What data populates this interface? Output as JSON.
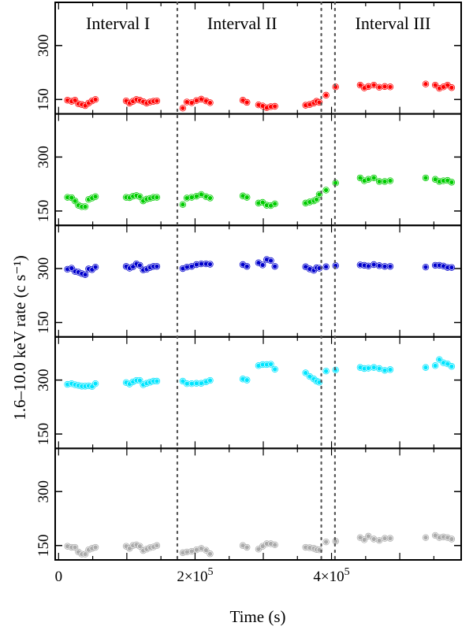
{
  "chart_data": {
    "type": "scatter",
    "xlabel": "Time (s)",
    "ylabel": "1.6–10.0 keV rate (c s⁻¹)",
    "xlim": [
      -5000,
      590000
    ],
    "ylim": [
      110,
      420
    ],
    "x_ticks": [
      {
        "value": 0,
        "base": "0",
        "exp": ""
      },
      {
        "value": 200000,
        "base": "2×10",
        "exp": "5"
      },
      {
        "value": 400000,
        "base": "4×10",
        "exp": "5"
      }
    ],
    "y_ticks": [
      {
        "value": 150,
        "label": "150"
      },
      {
        "value": 300,
        "label": "300"
      }
    ],
    "vertical_lines": [
      174000,
      385000,
      405000
    ],
    "intervals": [
      {
        "label": "Interval I",
        "x_center": 87000
      },
      {
        "label": "Interval II",
        "x_center": 269000
      },
      {
        "label": "Interval III",
        "x_center": 490000
      }
    ],
    "panels": [
      {
        "color": "#ff0000",
        "points": [
          [
            13000,
            148
          ],
          [
            19000,
            145
          ],
          [
            24000,
            148
          ],
          [
            29000,
            138
          ],
          [
            34000,
            136
          ],
          [
            39000,
            133
          ],
          [
            44000,
            140
          ],
          [
            49000,
            146
          ],
          [
            54000,
            150
          ],
          [
            99000,
            146
          ],
          [
            104000,
            140
          ],
          [
            109000,
            145
          ],
          [
            114000,
            150
          ],
          [
            119000,
            148
          ],
          [
            124000,
            144
          ],
          [
            129000,
            140
          ],
          [
            134000,
            143
          ],
          [
            139000,
            145
          ],
          [
            144000,
            146
          ],
          [
            182000,
            126
          ],
          [
            188000,
            143
          ],
          [
            195000,
            141
          ],
          [
            202000,
            147
          ],
          [
            209000,
            151
          ],
          [
            216000,
            146
          ],
          [
            222000,
            141
          ],
          [
            270000,
            148
          ],
          [
            276000,
            142
          ],
          [
            293000,
            135
          ],
          [
            299000,
            132
          ],
          [
            305000,
            127
          ],
          [
            311000,
            130
          ],
          [
            317000,
            131
          ],
          [
            362000,
            134
          ],
          [
            368000,
            136
          ],
          [
            374000,
            140
          ],
          [
            378000,
            145
          ],
          [
            382000,
            142
          ],
          [
            392000,
            162
          ],
          [
            406000,
            185
          ],
          [
            442000,
            190
          ],
          [
            448000,
            182
          ],
          [
            454000,
            186
          ],
          [
            462000,
            190
          ],
          [
            470000,
            184
          ],
          [
            478000,
            186
          ],
          [
            486000,
            185
          ],
          [
            538000,
            193
          ],
          [
            552000,
            190
          ],
          [
            558000,
            181
          ],
          [
            564000,
            185
          ],
          [
            570000,
            190
          ],
          [
            576000,
            183
          ]
        ]
      },
      {
        "color": "#00cc00",
        "points": [
          [
            13000,
            188
          ],
          [
            19000,
            187
          ],
          [
            24000,
            178
          ],
          [
            29000,
            166
          ],
          [
            34000,
            162
          ],
          [
            39000,
            162
          ],
          [
            44000,
            182
          ],
          [
            49000,
            186
          ],
          [
            54000,
            190
          ],
          [
            99000,
            188
          ],
          [
            104000,
            187
          ],
          [
            109000,
            191
          ],
          [
            114000,
            193
          ],
          [
            119000,
            190
          ],
          [
            124000,
            178
          ],
          [
            129000,
            183
          ],
          [
            134000,
            185
          ],
          [
            139000,
            188
          ],
          [
            144000,
            188
          ],
          [
            182000,
            168
          ],
          [
            188000,
            186
          ],
          [
            195000,
            188
          ],
          [
            202000,
            191
          ],
          [
            209000,
            196
          ],
          [
            216000,
            190
          ],
          [
            222000,
            186
          ],
          [
            270000,
            192
          ],
          [
            276000,
            188
          ],
          [
            293000,
            172
          ],
          [
            299000,
            174
          ],
          [
            305000,
            166
          ],
          [
            311000,
            165
          ],
          [
            317000,
            170
          ],
          [
            362000,
            172
          ],
          [
            368000,
            175
          ],
          [
            374000,
            178
          ],
          [
            378000,
            182
          ],
          [
            382000,
            196
          ],
          [
            392000,
            208
          ],
          [
            406000,
            228
          ],
          [
            442000,
            242
          ],
          [
            448000,
            234
          ],
          [
            454000,
            238
          ],
          [
            462000,
            242
          ],
          [
            470000,
            232
          ],
          [
            478000,
            232
          ],
          [
            486000,
            234
          ],
          [
            538000,
            242
          ],
          [
            552000,
            238
          ],
          [
            558000,
            232
          ],
          [
            564000,
            234
          ],
          [
            570000,
            235
          ],
          [
            576000,
            230
          ]
        ]
      },
      {
        "color": "#0000cc",
        "points": [
          [
            13000,
            298
          ],
          [
            19000,
            301
          ],
          [
            24000,
            292
          ],
          [
            29000,
            290
          ],
          [
            34000,
            286
          ],
          [
            39000,
            283
          ],
          [
            44000,
            299
          ],
          [
            49000,
            297
          ],
          [
            54000,
            304
          ],
          [
            99000,
            306
          ],
          [
            104000,
            301
          ],
          [
            109000,
            305
          ],
          [
            114000,
            313
          ],
          [
            119000,
            309
          ],
          [
            124000,
            296
          ],
          [
            129000,
            298
          ],
          [
            134000,
            303
          ],
          [
            139000,
            306
          ],
          [
            144000,
            306
          ],
          [
            182000,
            300
          ],
          [
            188000,
            304
          ],
          [
            195000,
            306
          ],
          [
            202000,
            311
          ],
          [
            209000,
            313
          ],
          [
            216000,
            313
          ],
          [
            222000,
            312
          ],
          [
            270000,
            311
          ],
          [
            276000,
            306
          ],
          [
            293000,
            316
          ],
          [
            299000,
            310
          ],
          [
            305000,
            325
          ],
          [
            311000,
            322
          ],
          [
            317000,
            306
          ],
          [
            362000,
            305
          ],
          [
            368000,
            299
          ],
          [
            374000,
            295
          ],
          [
            378000,
            302
          ],
          [
            382000,
            301
          ],
          [
            392000,
            305
          ],
          [
            406000,
            308
          ],
          [
            442000,
            310
          ],
          [
            448000,
            309
          ],
          [
            454000,
            307
          ],
          [
            462000,
            311
          ],
          [
            470000,
            308
          ],
          [
            478000,
            306
          ],
          [
            486000,
            306
          ],
          [
            538000,
            304
          ],
          [
            552000,
            309
          ],
          [
            558000,
            309
          ],
          [
            564000,
            307
          ],
          [
            570000,
            303
          ],
          [
            576000,
            303
          ]
        ]
      },
      {
        "color": "#00e5ff",
        "points": [
          [
            13000,
            288
          ],
          [
            19000,
            290
          ],
          [
            24000,
            287
          ],
          [
            29000,
            285
          ],
          [
            34000,
            283
          ],
          [
            39000,
            283
          ],
          [
            44000,
            284
          ],
          [
            49000,
            282
          ],
          [
            54000,
            290
          ],
          [
            99000,
            293
          ],
          [
            104000,
            289
          ],
          [
            109000,
            295
          ],
          [
            114000,
            299
          ],
          [
            119000,
            299
          ],
          [
            124000,
            287
          ],
          [
            129000,
            291
          ],
          [
            134000,
            294
          ],
          [
            139000,
            297
          ],
          [
            144000,
            297
          ],
          [
            182000,
            297
          ],
          [
            188000,
            290
          ],
          [
            195000,
            290
          ],
          [
            202000,
            291
          ],
          [
            209000,
            291
          ],
          [
            216000,
            295
          ],
          [
            222000,
            299
          ],
          [
            270000,
            303
          ],
          [
            276000,
            300
          ],
          [
            293000,
            340
          ],
          [
            299000,
            343
          ],
          [
            305000,
            343
          ],
          [
            311000,
            344
          ],
          [
            317000,
            330
          ],
          [
            362000,
            320
          ],
          [
            368000,
            310
          ],
          [
            374000,
            303
          ],
          [
            378000,
            297
          ],
          [
            382000,
            294
          ],
          [
            392000,
            325
          ],
          [
            406000,
            328
          ],
          [
            442000,
            335
          ],
          [
            448000,
            332
          ],
          [
            454000,
            333
          ],
          [
            462000,
            335
          ],
          [
            470000,
            332
          ],
          [
            478000,
            327
          ],
          [
            486000,
            329
          ],
          [
            538000,
            335
          ],
          [
            552000,
            340
          ],
          [
            558000,
            357
          ],
          [
            564000,
            348
          ],
          [
            570000,
            345
          ],
          [
            576000,
            338
          ]
        ]
      },
      {
        "color": "#aaaaaa",
        "points": [
          [
            13000,
            148
          ],
          [
            19000,
            145
          ],
          [
            24000,
            145
          ],
          [
            29000,
            132
          ],
          [
            34000,
            126
          ],
          [
            39000,
            126
          ],
          [
            44000,
            138
          ],
          [
            49000,
            142
          ],
          [
            54000,
            145
          ],
          [
            99000,
            148
          ],
          [
            104000,
            142
          ],
          [
            109000,
            150
          ],
          [
            114000,
            152
          ],
          [
            119000,
            148
          ],
          [
            124000,
            136
          ],
          [
            129000,
            140
          ],
          [
            134000,
            144
          ],
          [
            139000,
            146
          ],
          [
            144000,
            150
          ],
          [
            182000,
            130
          ],
          [
            188000,
            132
          ],
          [
            195000,
            134
          ],
          [
            202000,
            138
          ],
          [
            209000,
            142
          ],
          [
            216000,
            137
          ],
          [
            222000,
            127
          ],
          [
            270000,
            150
          ],
          [
            276000,
            145
          ],
          [
            293000,
            140
          ],
          [
            299000,
            148
          ],
          [
            305000,
            155
          ],
          [
            311000,
            155
          ],
          [
            317000,
            152
          ],
          [
            362000,
            145
          ],
          [
            368000,
            144
          ],
          [
            374000,
            142
          ],
          [
            378000,
            139
          ],
          [
            382000,
            138
          ],
          [
            392000,
            160
          ],
          [
            406000,
            162
          ],
          [
            442000,
            172
          ],
          [
            448000,
            166
          ],
          [
            454000,
            176
          ],
          [
            462000,
            168
          ],
          [
            470000,
            164
          ],
          [
            478000,
            170
          ],
          [
            486000,
            170
          ],
          [
            538000,
            172
          ],
          [
            552000,
            178
          ],
          [
            558000,
            172
          ],
          [
            564000,
            174
          ],
          [
            570000,
            172
          ],
          [
            576000,
            168
          ]
        ]
      }
    ]
  }
}
